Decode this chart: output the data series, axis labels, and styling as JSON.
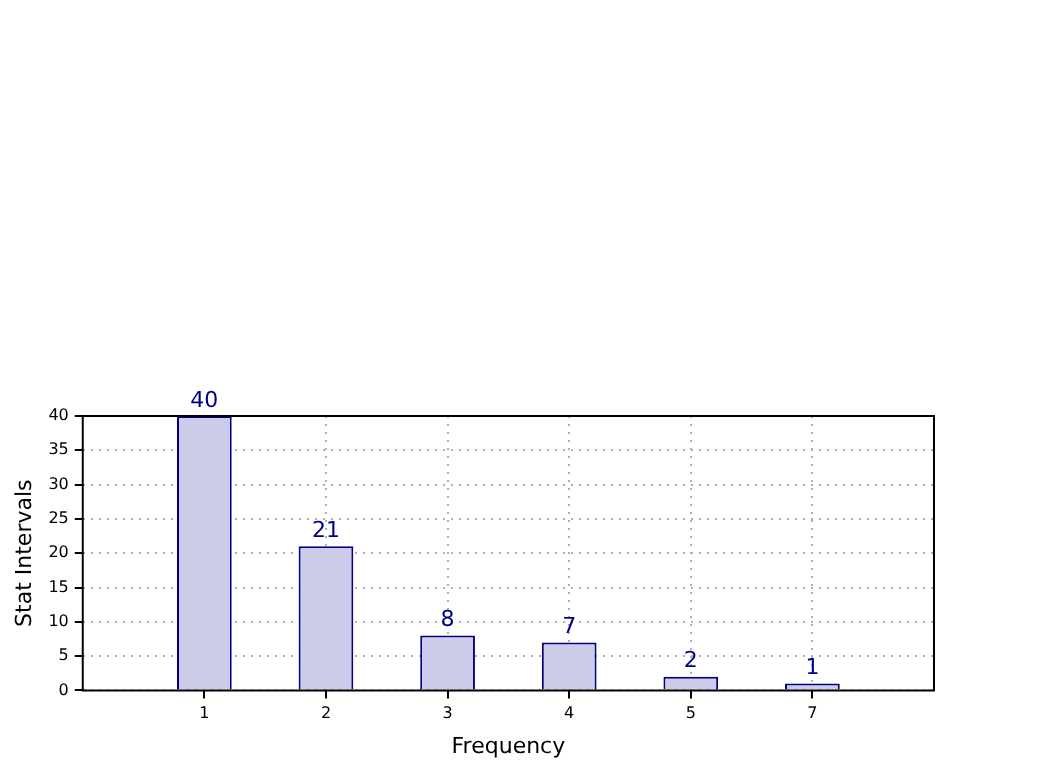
{
  "chart_data": {
    "type": "bar",
    "xlabel": "Frequency",
    "ylabel": "Stat Intervals",
    "categories": [
      "1",
      "2",
      "3",
      "4",
      "5",
      "7"
    ],
    "values": [
      40,
      21,
      8,
      7,
      2,
      1
    ],
    "color": "#ccccea",
    "ylim": [
      0,
      40
    ],
    "yticks": [
      0,
      5,
      10,
      15,
      20,
      25,
      30,
      35,
      40
    ],
    "grid": true,
    "data_labels": true,
    "legend": false
  }
}
